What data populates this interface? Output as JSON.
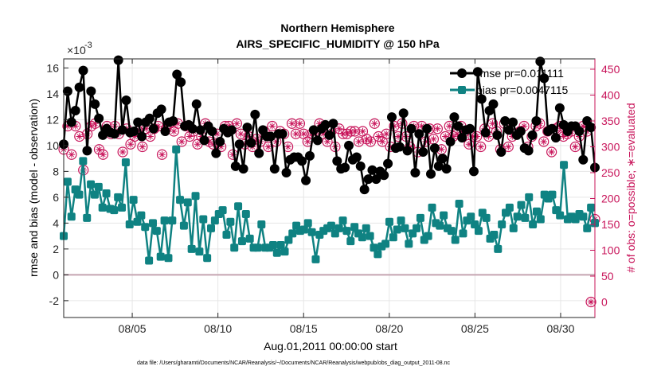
{
  "chart_data": {
    "type": "line",
    "title": "Northern Hemisphere",
    "subtitle": "AIRS_SPECIFIC_HUMIDITY @ 150 hPa",
    "xlabel": "Aug.01,2011 00:00:00 start",
    "ylabel_left": "rmse and bias (model - observation)",
    "ylabel_right": "# of obs: o=possible; ∗=evaluated",
    "exponent_label": "×10",
    "exponent_power": "-3",
    "footnote": "data file: /Users/gharamti/Documents/NCAR/Reanalysis/~/Documents/NCAR/Reanalysis/webpub/obs_diag_output_2011-08.nc",
    "xlim": [
      1,
      32
    ],
    "ylim_left": [
      -3.3,
      16.7
    ],
    "ylim_right": [
      -30,
      470
    ],
    "xticks": [
      5,
      10,
      15,
      20,
      25,
      30
    ],
    "xtick_labels": [
      "08/05",
      "08/10",
      "08/15",
      "08/20",
      "08/25",
      "08/30"
    ],
    "yticks_left": [
      -2,
      0,
      2,
      4,
      6,
      8,
      10,
      12,
      14,
      16
    ],
    "ytick_labels_left": [
      "-2",
      "0",
      "2",
      "4",
      "6",
      "8",
      "10",
      "12",
      "14",
      "16"
    ],
    "yticks_right": [
      0,
      50,
      100,
      150,
      200,
      250,
      300,
      350,
      400,
      450
    ],
    "ytick_labels_right": [
      "0",
      "50",
      "100",
      "150",
      "200",
      "250",
      "300",
      "350",
      "400",
      "450"
    ],
    "grid": true,
    "legend_position": "top-right",
    "zero_line": 0,
    "colors": {
      "rmse": "#000000",
      "bias": "#0f8282",
      "obs": "#c8145a",
      "zero": "#c4a4b0",
      "grid": "#e6e6e6"
    },
    "series": [
      {
        "name": "rmse",
        "legend": "rmse pr=0.011111",
        "axis": "left",
        "values": [
          10.1,
          14.2,
          11.8,
          12.7,
          14.5,
          15.8,
          9.6,
          14.2,
          13.2,
          12.1,
          10.8,
          11.3,
          11.0,
          10.9,
          16.6,
          11.2,
          13.5,
          11.0,
          11.1,
          11.8,
          10.7,
          11.8,
          12.1,
          11.3,
          12.5,
          12.8,
          11.1,
          11.8,
          11.9,
          15.5,
          14.9,
          11.5,
          11.6,
          11.3,
          13.2,
          11.2,
          10.4,
          11.5,
          11.1,
          9.4,
          10.3,
          11.3,
          11.0,
          11.2,
          8.4,
          10.1,
          8.2,
          11.4,
          10.2,
          12.4,
          9.4,
          11.2,
          10.7,
          10.7,
          8.2,
          10.9,
          10.9,
          7.9,
          8.9,
          9.1,
          9.1,
          8.8,
          7.3,
          9.2,
          11.2,
          10.4,
          11.3,
          11.6,
          10.8,
          11.7,
          8.8,
          8.2,
          8.3,
          10.0,
          8.9,
          9.1,
          8.4,
          6.6,
          7.4,
          8.1,
          7.4,
          8.0,
          7.7,
          8.6,
          12.2,
          9.8,
          9.9,
          12.5,
          9.6,
          11.3,
          7.9,
          10.9,
          9.5,
          11.3,
          7.8,
          9.8,
          8.4,
          9.0,
          8.2,
          10.3,
          12.2,
          11.5,
          10.6,
          11.2,
          11.3,
          8.0,
          15.7,
          13.6,
          11.0,
          12.7,
          13.2,
          10.8,
          9.5,
          11.9,
          11.2,
          11.8,
          10.8,
          11.1,
          9.8,
          9.6,
          10.8,
          11.9,
          16.5,
          15.2,
          11.1,
          11.3,
          10.6,
          12.9,
          11.6,
          11.1,
          11.5,
          11.5,
          11.1,
          8.9,
          11.9,
          11.4,
          8.3
        ]
      },
      {
        "name": "bias",
        "legend": "bias pr=0.0047115",
        "axis": "left",
        "values": [
          3.0,
          7.2,
          4.5,
          6.6,
          6.2,
          8.8,
          4.4,
          7.0,
          6.2,
          6.8,
          5.2,
          6.3,
          5.1,
          5.0,
          6.0,
          5.2,
          8.7,
          3.9,
          5.8,
          4.1,
          4.6,
          3.7,
          1.1,
          4.0,
          3.4,
          1.4,
          4.2,
          1.3,
          4.2,
          9.7,
          5.8,
          3.8,
          5.6,
          2.0,
          6.1,
          1.8,
          4.3,
          1.3,
          3.6,
          4.2,
          4.7,
          5.0,
          3.1,
          4.1,
          2.1,
          5.3,
          2.6,
          4.7,
          2.8,
          2.1,
          2.1,
          3.9,
          2.1,
          2.1,
          2.3,
          1.7,
          2.3,
          1.8,
          2.7,
          3.2,
          3.8,
          3.4,
          3.5,
          4.0,
          3.3,
          1.2,
          3.1,
          3.4,
          3.6,
          3.8,
          3.2,
          3.6,
          4.2,
          3.4,
          2.6,
          3.7,
          3.2,
          2.9,
          3.6,
          3.0,
          2.1,
          1.6,
          2.2,
          2.4,
          4.1,
          2.9,
          3.5,
          4.2,
          3.6,
          2.4,
          3.2,
          3.6,
          4.4,
          2.7,
          3.0,
          5.2,
          4.0,
          3.8,
          4.6,
          3.6,
          3.4,
          2.7,
          5.5,
          3.2,
          4.2,
          4.5,
          3.9,
          3.4,
          4.8,
          4.4,
          2.8,
          3.1,
          2.0,
          3.9,
          4.8,
          5.2,
          3.6,
          4.5,
          5.4,
          4.4,
          6.0,
          3.9,
          4.9,
          4.3,
          6.2,
          5.9,
          6.2,
          5.0,
          4.6,
          8.5,
          4.3,
          4.5,
          4.3,
          4.7,
          4.5,
          3.6,
          5.2,
          4.0
        ]
      },
      {
        "name": "obs",
        "axis": "right",
        "values": [
          295,
          340,
          285,
          340,
          320,
          255,
          325,
          340,
          345,
          295,
          285,
          340,
          325,
          340,
          325,
          290,
          335,
          305,
          320,
          330,
          300,
          335,
          320,
          335,
          340,
          285,
          335,
          345,
          330,
          345,
          310,
          340,
          320,
          330,
          305,
          320,
          345,
          310,
          305,
          325,
          300,
          340,
          340,
          285,
          345,
          325,
          305,
          320,
          300,
          315,
          310,
          330,
          300,
          340,
          310,
          330,
          325,
          300,
          345,
          325,
          345,
          325,
          310,
          325,
          325,
          345,
          325,
          310,
          330,
          300,
          335,
          325,
          325,
          330,
          330,
          310,
          330,
          315,
          310,
          345,
          320,
          310,
          325,
          300,
          340,
          320,
          345,
          320,
          300,
          340,
          290,
          340,
          310,
          335,
          315,
          335,
          295,
          320,
          340,
          320,
          325,
          340,
          330,
          305,
          320,
          320,
          300,
          335,
          320,
          345,
          330,
          295,
          345,
          300,
          320,
          325,
          330,
          340,
          300,
          320,
          340,
          345,
          310,
          330,
          290,
          335,
          340,
          320,
          325,
          330,
          300,
          320,
          340,
          330,
          0,
          160
        ]
      }
    ]
  }
}
